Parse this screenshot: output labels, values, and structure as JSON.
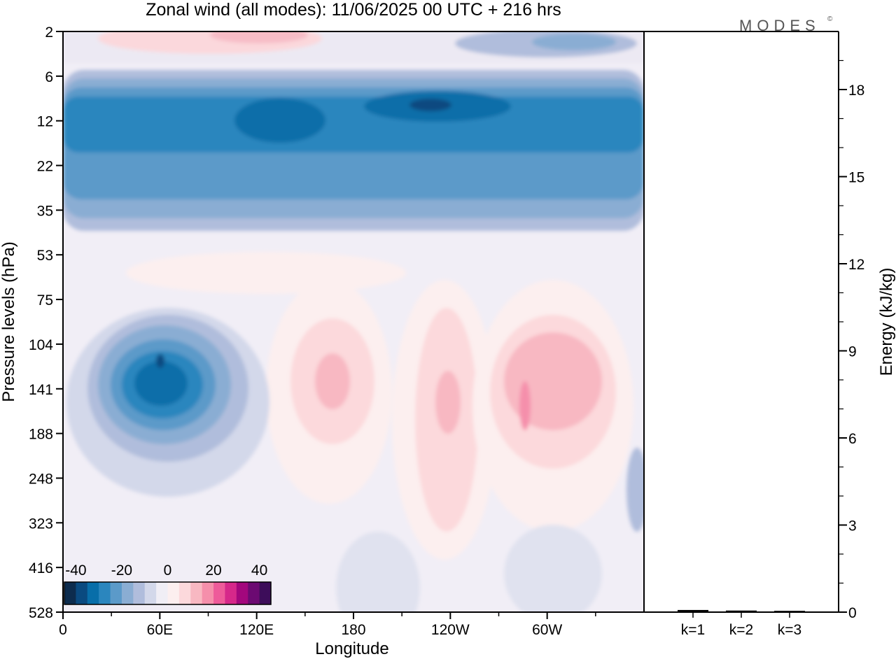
{
  "brand": "MODES",
  "brand_mark": "©",
  "chart_data": [
    {
      "type": "heatmap",
      "title": "Zonal wind (all modes):  11/06/2025  00 UTC  + 216 hrs",
      "xlabel": "Longitude",
      "ylabel": "Pressure levels (hPa)",
      "x_ticks": [
        "0",
        "60E",
        "120E",
        "180",
        "120W",
        "60W"
      ],
      "y_ticks": [
        "2",
        "6",
        "12",
        "22",
        "35",
        "53",
        "75",
        "104",
        "141",
        "188",
        "248",
        "323",
        "416",
        "528"
      ],
      "colorbar": {
        "tick_labels": [
          "-40",
          "-20",
          "0",
          "20",
          "40"
        ],
        "colors": [
          "#0d2c4e",
          "#0a4a80",
          "#086ea9",
          "#2b86be",
          "#5b9ac9",
          "#8aadd3",
          "#b0bddc",
          "#d3d8ea",
          "#f0eef5",
          "#fcefef",
          "#fcd9dc",
          "#f8b8c2",
          "#f58fab",
          "#ee5b9a",
          "#d6288a",
          "#a3077d",
          "#6c0a72",
          "#3d0d5a"
        ]
      },
      "features": [
        {
          "region": "stratospheric easterly jet band, 6-35 hPa, all longitudes",
          "value": -25,
          "min": -38
        },
        {
          "region": "upper-troposphere easterly core near 60E, ~141 hPa",
          "value": -35
        },
        {
          "region": "westerly maxima near 120W and 60W, ~141 hPa",
          "value": 20
        }
      ]
    },
    {
      "type": "bar",
      "categories": [
        "k=1",
        "k=2",
        "k=3"
      ],
      "values": [
        0.05,
        0.03,
        0.02
      ],
      "ylabel": "Energy (kJ/kg)",
      "ylim": [
        0,
        20
      ],
      "y_ticks": [
        "0",
        "3",
        "6",
        "9",
        "12",
        "15",
        "18"
      ]
    }
  ]
}
